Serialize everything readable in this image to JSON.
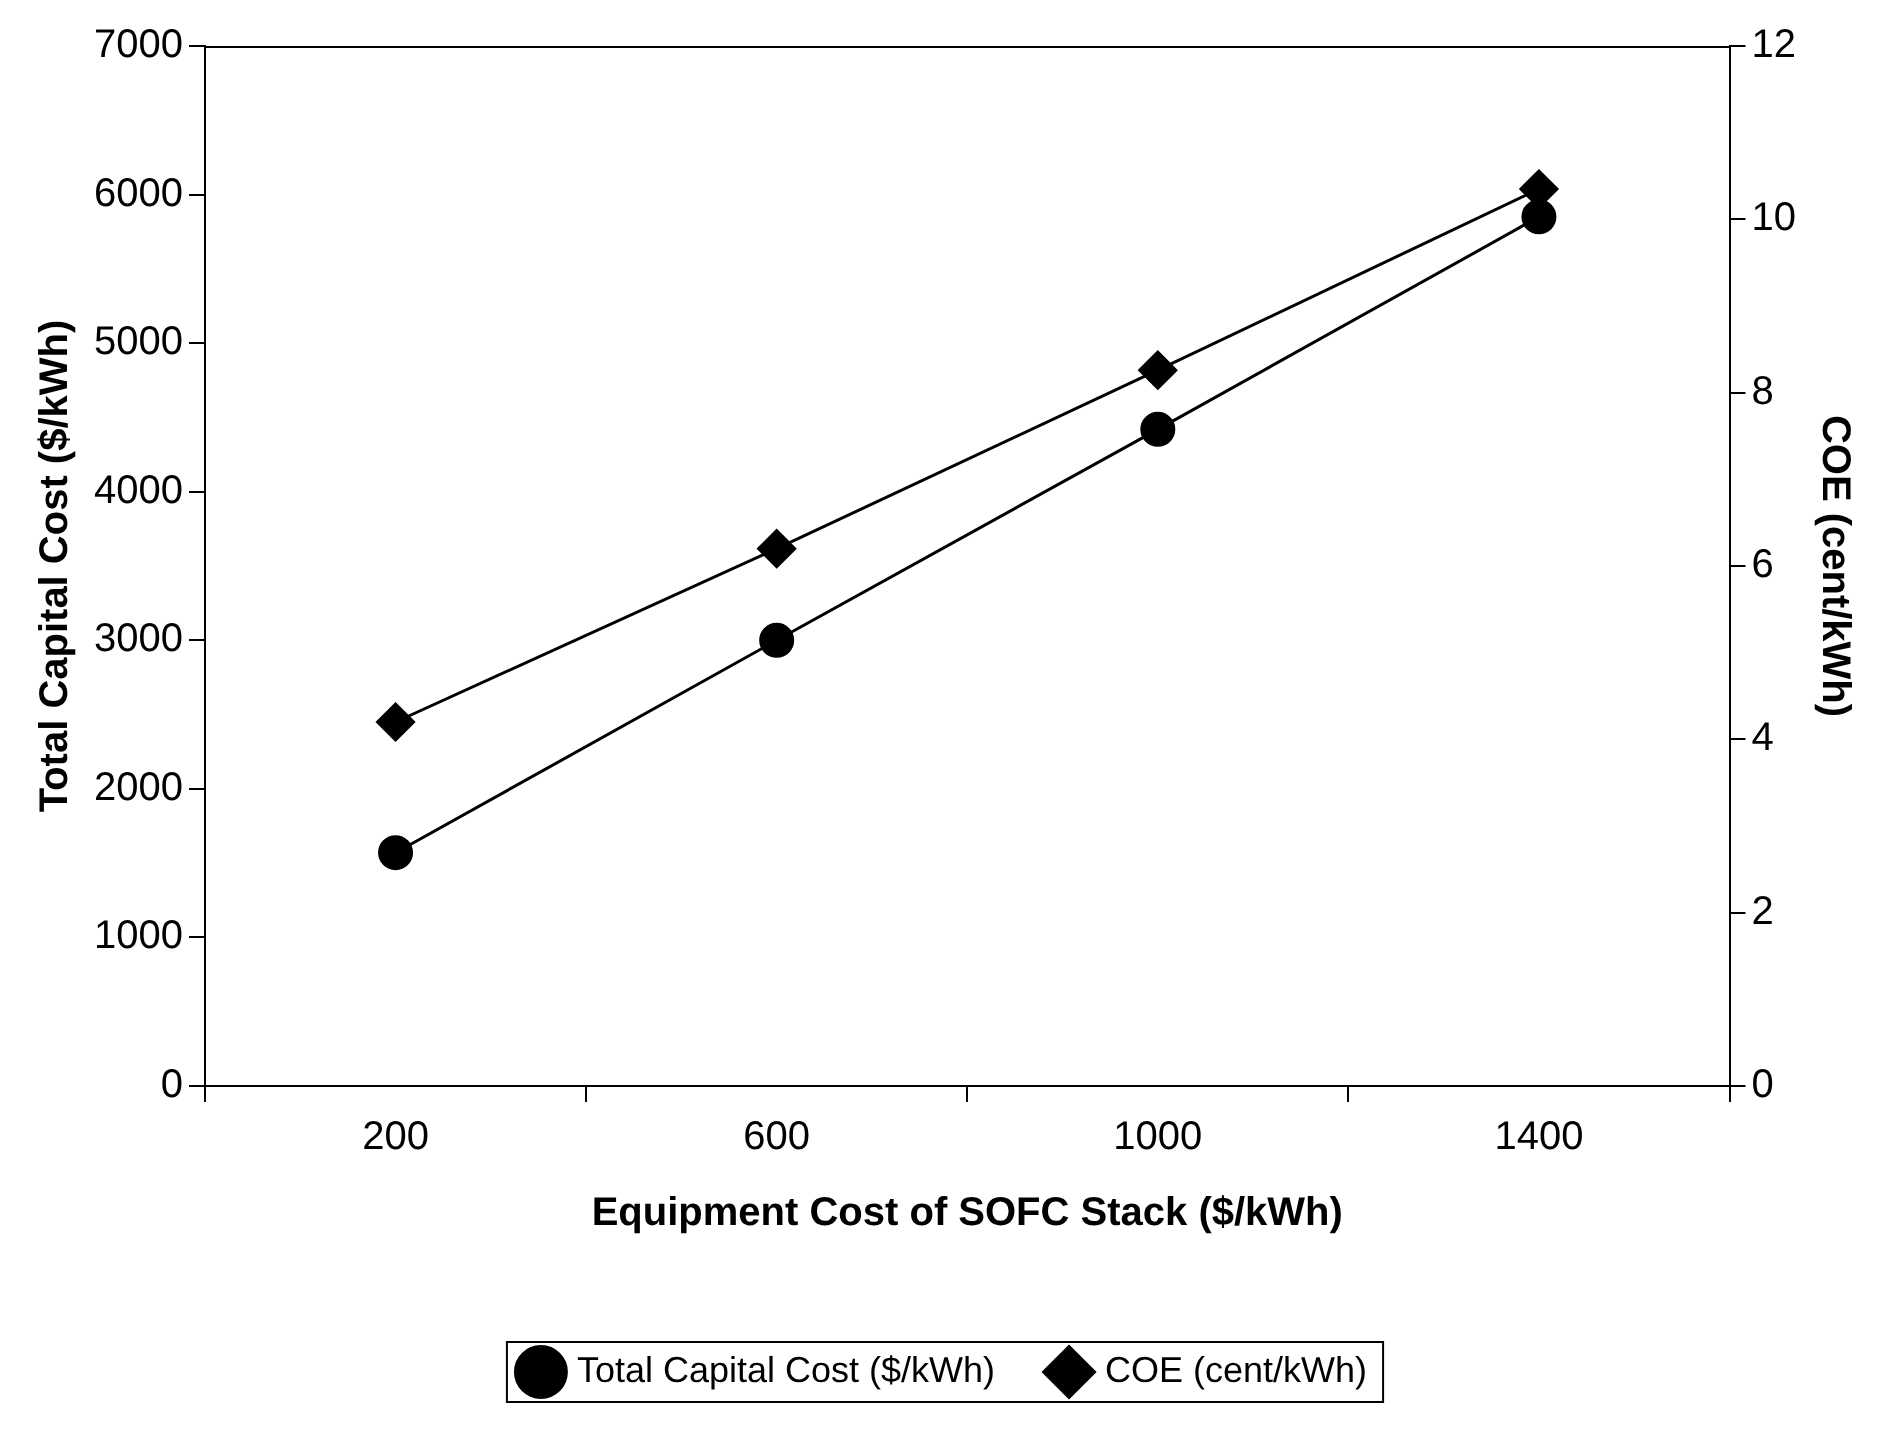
{
  "chart_data": {
    "type": "line",
    "xlabel": "Equipment Cost of SOFC Stack ($/kWh)",
    "ylabel": "Total Capital Cost ($/kWh)",
    "y2label": "COE (cent/kWh)",
    "categories": [
      "200",
      "600",
      "1000",
      "1400"
    ],
    "series": [
      {
        "name": "Total Capital Cost ($/kWh)",
        "color": "#000000",
        "values": [
          1570,
          3000,
          4420,
          5850
        ],
        "marker": "circle"
      },
      {
        "name": "COE (cent/kWh)",
        "color": "#000000",
        "values": [
          4.2,
          6.2,
          8.26,
          10.35
        ],
        "marker": "diamond",
        "axis": "y2"
      }
    ],
    "ylim": [
      0,
      7000
    ],
    "yticks": [
      0,
      1000,
      2000,
      3000,
      4000,
      5000,
      6000,
      7000
    ],
    "y2lim": [
      0,
      12
    ],
    "y2ticks": [
      0,
      2,
      4,
      6,
      8,
      10,
      12
    ],
    "grid": false,
    "legend": "bottom",
    "line_style": "solid"
  }
}
